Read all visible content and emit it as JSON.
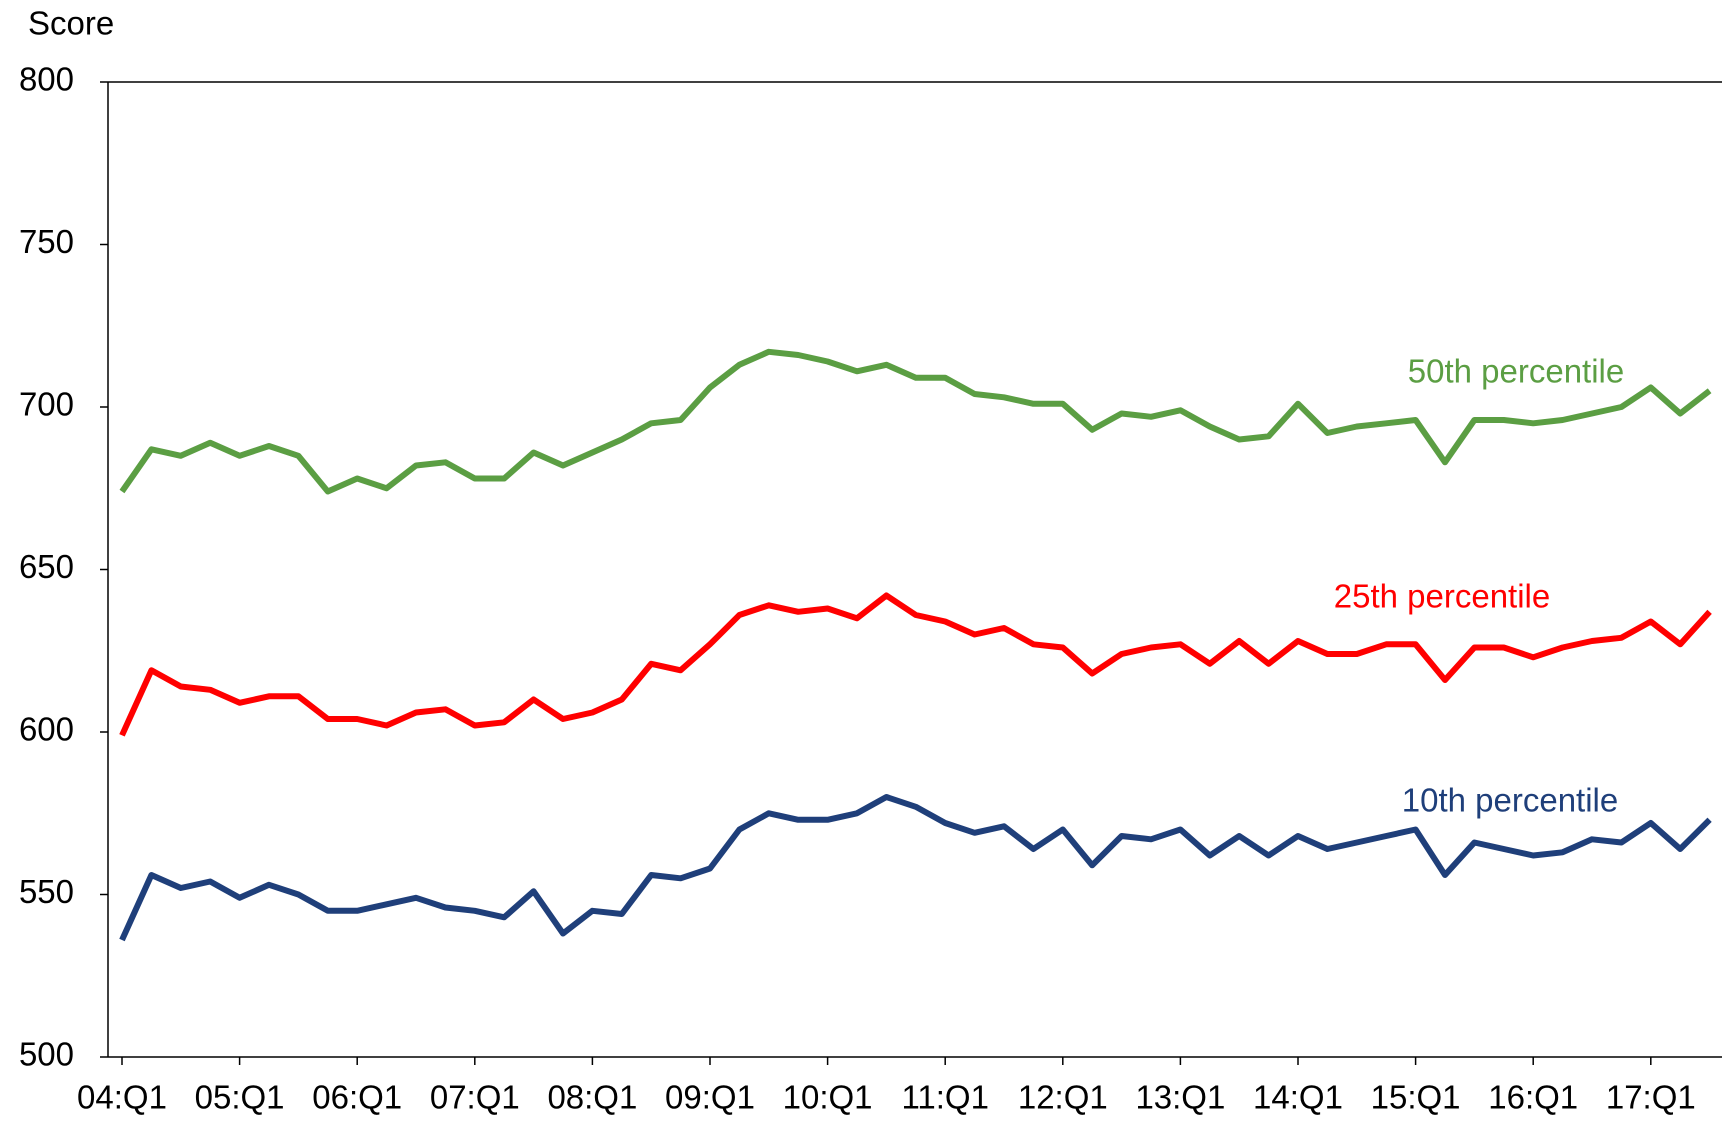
{
  "chart_data": {
    "type": "line",
    "y_label": "Score",
    "categories": [
      "04:Q1",
      null,
      null,
      null,
      "05:Q1",
      null,
      null,
      null,
      "06:Q1",
      null,
      null,
      null,
      "07:Q1",
      null,
      null,
      null,
      "08:Q1",
      null,
      null,
      null,
      "09:Q1",
      null,
      null,
      null,
      "10:Q1",
      null,
      null,
      null,
      "11:Q1",
      null,
      null,
      null,
      "12:Q1",
      null,
      null,
      null,
      "13:Q1",
      null,
      null,
      null,
      "14:Q1",
      null,
      null,
      null,
      "15:Q1",
      null,
      null,
      null,
      "16:Q1",
      null,
      null,
      null,
      "17:Q1",
      null,
      null
    ],
    "series": [
      {
        "name": "50th percentile",
        "color": "#5b9e43",
        "values": [
          674,
          687,
          685,
          689,
          685,
          688,
          685,
          674,
          678,
          675,
          682,
          683,
          678,
          678,
          686,
          682,
          686,
          690,
          695,
          696,
          706,
          713,
          717,
          716,
          714,
          711,
          713,
          709,
          709,
          704,
          703,
          701,
          701,
          693,
          698,
          697,
          699,
          694,
          690,
          691,
          701,
          692,
          694,
          695,
          696,
          683,
          696,
          696,
          695,
          696,
          698,
          700,
          706,
          698,
          705
        ]
      },
      {
        "name": "25th percentile",
        "color": "#ff0000",
        "values": [
          599,
          619,
          614,
          613,
          609,
          611,
          611,
          604,
          604,
          602,
          606,
          607,
          602,
          603,
          610,
          604,
          606,
          610,
          621,
          619,
          627,
          636,
          639,
          637,
          638,
          635,
          642,
          636,
          634,
          630,
          632,
          627,
          626,
          618,
          624,
          626,
          627,
          621,
          628,
          621,
          628,
          624,
          624,
          627,
          627,
          616,
          626,
          626,
          623,
          626,
          628,
          629,
          634,
          627,
          637
        ]
      },
      {
        "name": "10th percentile",
        "color": "#1f3f7a",
        "values": [
          536,
          556,
          552,
          554,
          549,
          553,
          550,
          545,
          545,
          547,
          549,
          546,
          545,
          543,
          551,
          538,
          545,
          544,
          556,
          555,
          558,
          570,
          575,
          573,
          573,
          575,
          580,
          577,
          572,
          569,
          571,
          564,
          570,
          559,
          568,
          567,
          570,
          562,
          568,
          562,
          568,
          564,
          566,
          568,
          570,
          556,
          566,
          564,
          562,
          563,
          567,
          566,
          572,
          564,
          573
        ]
      }
    ],
    "ylim": [
      500,
      800
    ],
    "yticks": [
      500,
      550,
      600,
      650,
      700,
      750,
      800
    ],
    "grid": false
  }
}
